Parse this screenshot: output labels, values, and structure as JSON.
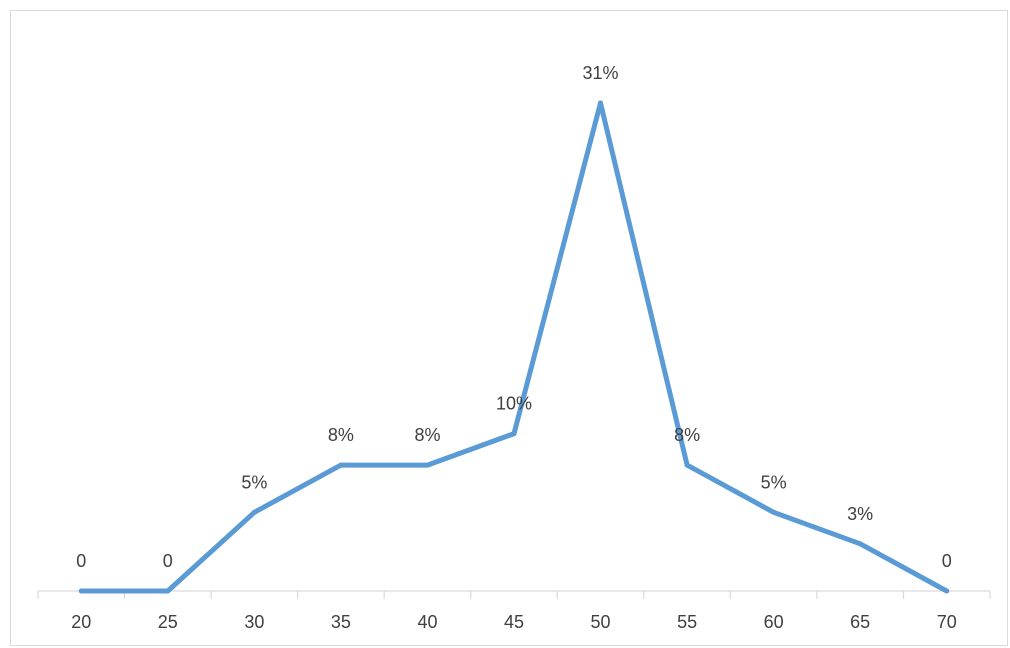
{
  "chart_data": {
    "type": "line",
    "categories": [
      "20",
      "25",
      "30",
      "35",
      "40",
      "45",
      "50",
      "55",
      "60",
      "65",
      "70"
    ],
    "series": [
      {
        "values": [
          0,
          0,
          5,
          8,
          8,
          10,
          31,
          8,
          5,
          3,
          0
        ],
        "labels": [
          "0",
          "0",
          "5%",
          "8%",
          "8%",
          "10%",
          "31%",
          "8%",
          "5%",
          "3%",
          "0"
        ],
        "color": "#5b9bd5"
      }
    ],
    "ylim": [
      0,
      31
    ],
    "grid": false,
    "legend": "none",
    "axis_color": "#d9d9d9"
  }
}
